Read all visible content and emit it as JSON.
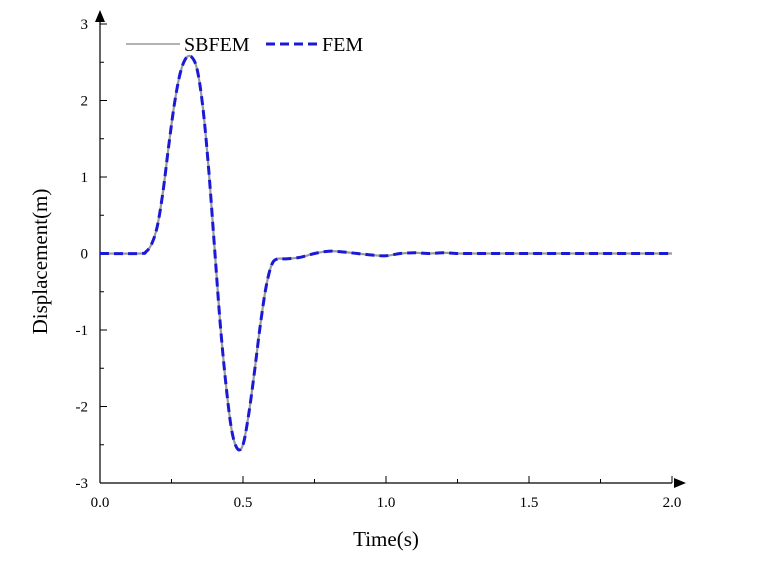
{
  "chart_data": {
    "type": "line",
    "xlabel": "Time(s)",
    "ylabel": "Displacement(m)",
    "xlim": [
      0,
      2.0
    ],
    "ylim": [
      -3,
      3
    ],
    "x_ticks": [
      0.0,
      0.5,
      1.0,
      1.5,
      2.0
    ],
    "x_tick_labels": [
      "0.0",
      "0.5",
      "1.0",
      "1.5",
      "2.0"
    ],
    "y_ticks": [
      -3,
      -2,
      -1,
      0,
      1,
      2,
      3
    ],
    "y_tick_labels": [
      "-3",
      "-2",
      "-1",
      "0",
      "1",
      "2",
      "3"
    ],
    "grid": false,
    "legend_position": "top-left",
    "x": [
      0.0,
      0.14,
      0.16,
      0.18,
      0.2,
      0.22,
      0.24,
      0.26,
      0.28,
      0.3,
      0.32,
      0.34,
      0.36,
      0.38,
      0.4,
      0.42,
      0.44,
      0.46,
      0.48,
      0.5,
      0.52,
      0.54,
      0.56,
      0.58,
      0.6,
      0.62,
      0.65,
      0.7,
      0.75,
      0.8,
      0.85,
      0.9,
      0.95,
      1.0,
      1.05,
      1.1,
      1.15,
      1.2,
      1.25,
      1.3,
      1.4,
      1.5,
      1.6,
      1.7,
      1.8,
      1.9,
      2.0
    ],
    "series": [
      {
        "name": "SBFEM",
        "color": "#9a9a9a",
        "style": "solid",
        "values": [
          0.0,
          0.0,
          0.02,
          0.12,
          0.35,
          0.8,
          1.4,
          1.95,
          2.35,
          2.55,
          2.57,
          2.4,
          1.9,
          1.1,
          0.1,
          -0.9,
          -1.7,
          -2.3,
          -2.55,
          -2.5,
          -2.1,
          -1.55,
          -0.95,
          -0.45,
          -0.15,
          -0.07,
          -0.07,
          -0.05,
          0.0,
          0.03,
          0.02,
          0.0,
          -0.02,
          -0.03,
          0.0,
          0.01,
          0.0,
          0.01,
          0.0,
          0.0,
          0.0,
          0.0,
          0.0,
          0.0,
          0.0,
          0.0,
          0.0
        ]
      },
      {
        "name": "FEM",
        "color": "#1a1ad6",
        "style": "dashed",
        "values": [
          0.0,
          0.0,
          0.02,
          0.12,
          0.35,
          0.8,
          1.4,
          1.95,
          2.35,
          2.55,
          2.57,
          2.4,
          1.9,
          1.1,
          0.1,
          -0.9,
          -1.7,
          -2.3,
          -2.55,
          -2.5,
          -2.1,
          -1.55,
          -0.95,
          -0.45,
          -0.15,
          -0.07,
          -0.07,
          -0.05,
          0.0,
          0.03,
          0.02,
          0.0,
          -0.02,
          -0.03,
          0.0,
          0.01,
          0.0,
          0.01,
          0.0,
          0.0,
          0.0,
          0.0,
          0.0,
          0.0,
          0.0,
          0.0,
          0.0
        ]
      }
    ]
  }
}
